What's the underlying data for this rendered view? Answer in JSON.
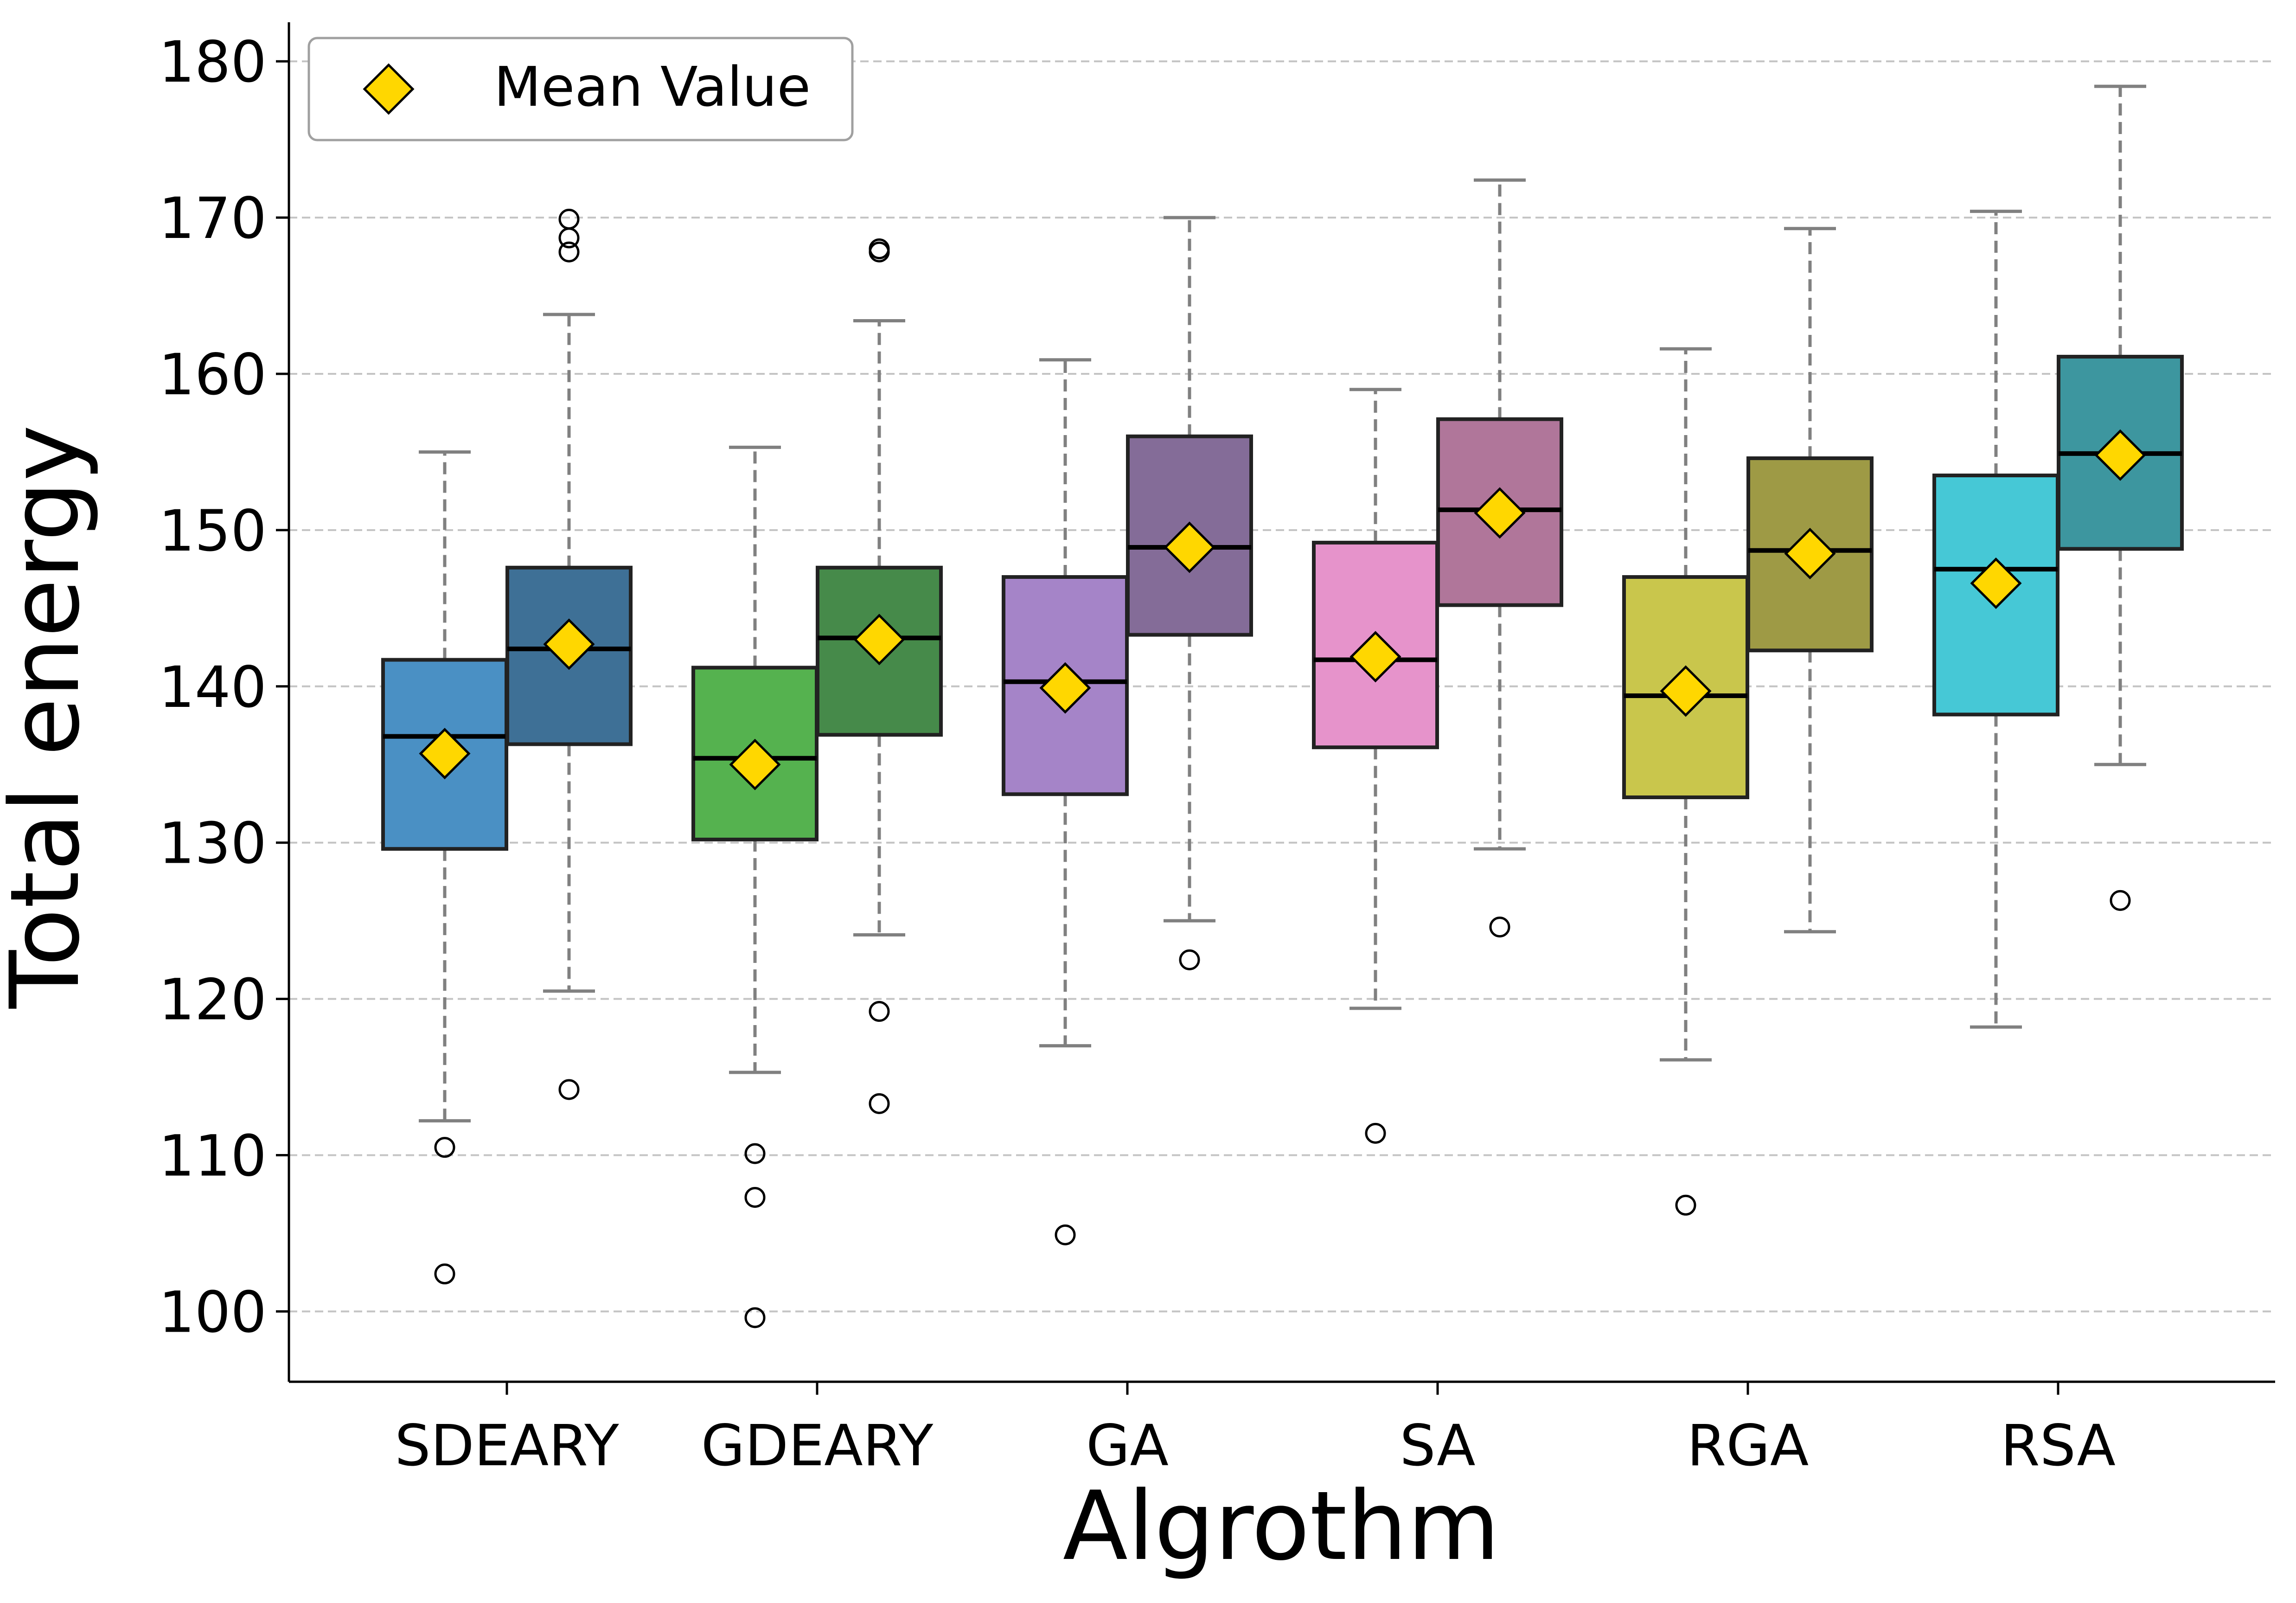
{
  "chart_data": {
    "type": "box",
    "xlabel": "Algrothm",
    "ylabel": "Total energy",
    "ylim": [
      95.5,
      182.5
    ],
    "yticks": [
      100,
      110,
      120,
      130,
      140,
      150,
      160,
      170,
      180
    ],
    "grid": "y-dashed",
    "legend": {
      "position": "top-left",
      "entries": [
        {
          "label": "Mean Value",
          "marker": "diamond",
          "color": "#FFD700"
        }
      ]
    },
    "categories": [
      "SDEARY",
      "GDEARY",
      "GA",
      "SA",
      "RGA",
      "RSA"
    ],
    "boxes": [
      {
        "category": "SDEARY",
        "pos": 0,
        "color": "#4A90C4",
        "whisker_low": 112.2,
        "q1": 129.6,
        "median": 136.8,
        "q3": 141.7,
        "whisker_high": 155.0,
        "mean": 135.7,
        "outliers": [
          110.5,
          102.4
        ]
      },
      {
        "category": "SDEARY",
        "pos": 1,
        "color": "#3E7096",
        "whisker_low": 120.5,
        "q1": 136.3,
        "median": 142.4,
        "q3": 147.6,
        "whisker_high": 163.8,
        "mean": 142.7,
        "outliers": [
          169.9,
          168.7,
          167.8,
          114.2
        ]
      },
      {
        "category": "GDEARY",
        "pos": 0,
        "color": "#55B24F",
        "whisker_low": 115.3,
        "q1": 130.2,
        "median": 135.4,
        "q3": 141.2,
        "whisker_high": 155.3,
        "mean": 135.0,
        "outliers": [
          110.1,
          107.3,
          99.6
        ]
      },
      {
        "category": "GDEARY",
        "pos": 1,
        "color": "#468A4A",
        "whisker_low": 124.1,
        "q1": 136.9,
        "median": 143.1,
        "q3": 147.6,
        "whisker_high": 163.4,
        "mean": 143.0,
        "outliers": [
          168.0,
          167.8,
          119.2,
          113.3
        ]
      },
      {
        "category": "GA",
        "pos": 0,
        "color": "#A584C8",
        "whisker_low": 117.0,
        "q1": 133.1,
        "median": 140.3,
        "q3": 147.0,
        "whisker_high": 160.9,
        "mean": 139.9,
        "outliers": [
          104.9
        ]
      },
      {
        "category": "GA",
        "pos": 1,
        "color": "#846C98",
        "whisker_low": 125.0,
        "q1": 143.3,
        "median": 148.9,
        "q3": 156.0,
        "whisker_high": 170.0,
        "mean": 148.9,
        "outliers": [
          122.5
        ]
      },
      {
        "category": "SA",
        "pos": 0,
        "color": "#E693CB",
        "whisker_low": 119.4,
        "q1": 136.1,
        "median": 141.7,
        "q3": 149.2,
        "whisker_high": 159.0,
        "mean": 141.9,
        "outliers": [
          111.4
        ]
      },
      {
        "category": "SA",
        "pos": 1,
        "color": "#B0769A",
        "whisker_low": 129.6,
        "q1": 145.2,
        "median": 151.3,
        "q3": 157.1,
        "whisker_high": 172.4,
        "mean": 151.1,
        "outliers": [
          124.6
        ]
      },
      {
        "category": "RGA",
        "pos": 0,
        "color": "#C9C64C",
        "whisker_low": 116.1,
        "q1": 132.9,
        "median": 139.4,
        "q3": 147.0,
        "whisker_high": 161.6,
        "mean": 139.7,
        "outliers": [
          106.8
        ]
      },
      {
        "category": "RGA",
        "pos": 1,
        "color": "#9E9A45",
        "whisker_low": 124.3,
        "q1": 142.3,
        "median": 148.7,
        "q3": 154.6,
        "whisker_high": 169.3,
        "mean": 148.5,
        "outliers": []
      },
      {
        "category": "RSA",
        "pos": 0,
        "color": "#46C8D6",
        "whisker_low": 118.2,
        "q1": 138.2,
        "median": 147.5,
        "q3": 153.5,
        "whisker_high": 170.4,
        "mean": 146.6,
        "outliers": []
      },
      {
        "category": "RSA",
        "pos": 1,
        "color": "#3D969F",
        "whisker_low": 135.0,
        "q1": 148.8,
        "median": 154.9,
        "q3": 161.1,
        "whisker_high": 178.4,
        "mean": 154.8,
        "outliers": [
          126.3
        ]
      }
    ]
  }
}
